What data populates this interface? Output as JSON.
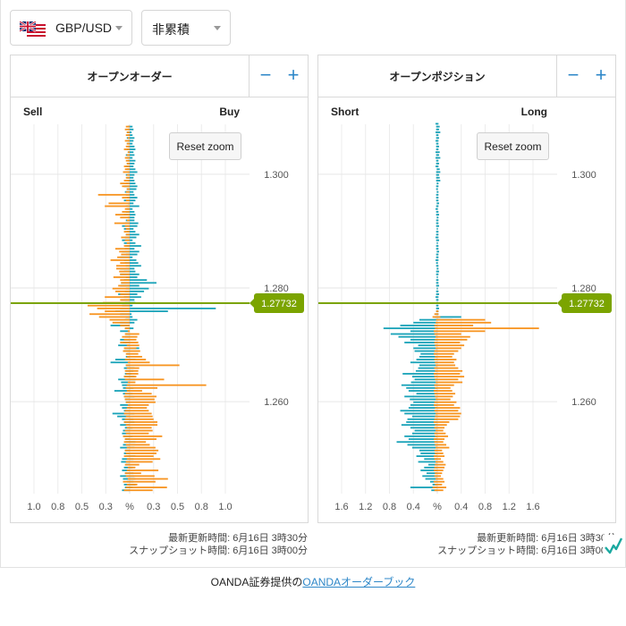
{
  "controls": {
    "pair": "GBP/USD",
    "mode": "非累積",
    "reset_label": "Reset zoom"
  },
  "colors": {
    "orange": "#f7931e",
    "teal": "#17a2b8",
    "price_line": "#7ba400",
    "zoom_blue": "#2d87c8"
  },
  "meta": {
    "left": {
      "updated": "最新更新時間: 6月16日 3時30分",
      "snapshot": "スナップショット時間: 6月16日 3時00分"
    },
    "right": {
      "updated": "最新更新時間: 6月16日 3時30分",
      "snapshot": "スナップショット時間: 6月16日 3時00分"
    }
  },
  "footer": {
    "prefix": "OANDA証券提供の",
    "link": "OANDAオーダーブック"
  },
  "chart_data": [
    {
      "type": "bar",
      "title": "オープンオーダー",
      "left_label": "Sell",
      "right_label": "Buy",
      "xlabel": "%",
      "x_ticks_left": [
        "1.0",
        "0.8",
        "0.5",
        "0.3"
      ],
      "x_ticks_right": [
        "0.3",
        "0.5",
        "0.8",
        "1.0"
      ],
      "center_label": "%",
      "x_scale_max": 1.0,
      "y_ticks": [
        "1.300",
        "1.280",
        "1.260"
      ],
      "y_range": [
        1.2438,
        1.3088
      ],
      "current_price": "1.27732",
      "bucket": 0.0005,
      "orange_right": [
        0,
        0.24,
        0.39,
        0.08,
        0.27,
        0.4,
        0.26,
        0.12,
        0.3,
        0.06,
        0.1,
        0.24,
        0.32,
        0.25,
        0.28,
        0.3,
        0.27,
        0.21,
        0.17,
        0.28,
        0.34,
        0.2,
        0.24,
        0.23,
        0.29,
        0.29,
        0.25,
        0.24,
        0.23,
        0.2,
        0.18,
        0.2,
        0.27,
        0.26,
        0.28,
        0.23,
        0.13,
        0.29,
        0.8,
        0.06,
        0.36,
        0.07,
        0.09,
        0.09,
        0.1,
        0.52,
        0.21,
        0.17,
        0.13,
        0.09,
        0.11,
        0.07,
        0.1,
        0.09,
        0.07,
        0.08,
        0.1,
        0,
        0,
        0,
        0,
        0,
        0,
        0,
        0,
        0,
        0,
        0,
        0,
        0,
        0,
        0,
        0,
        0,
        0,
        0,
        0,
        0,
        0,
        0,
        0,
        0,
        0,
        0,
        0,
        0,
        0,
        0,
        0,
        0,
        0,
        0,
        0,
        0,
        0,
        0,
        0,
        0,
        0,
        0,
        0,
        0,
        0,
        0,
        0,
        0,
        0,
        0,
        0,
        0,
        0,
        0,
        0,
        0,
        0,
        0,
        0,
        0,
        0,
        0,
        0,
        0,
        0,
        0,
        0,
        0,
        0,
        0,
        0,
        0,
        0,
        0,
        0,
        0,
        0
      ],
      "teal_right": [
        0,
        0,
        0.03,
        0.06,
        0.04,
        0.06,
        0.05,
        0.04,
        0,
        0.03,
        0,
        0,
        0.04,
        0.06,
        0,
        0,
        0.05,
        0,
        0.06,
        0,
        0.03,
        0,
        0,
        0.03,
        0,
        0.05,
        0.04,
        0,
        0.05,
        0,
        0.03,
        0,
        0,
        0,
        0.05,
        0.03,
        0,
        0.04,
        0,
        0,
        0.06,
        0.05,
        0.02,
        0.04,
        0.05,
        0,
        0,
        0.06,
        0,
        0,
        0,
        0.1,
        0,
        0,
        0,
        0,
        0,
        0,
        0.04,
        0,
        0.05,
        0.08,
        0.03,
        0.02,
        0.4,
        0.9,
        0.03,
        0.06,
        0.05,
        0.12,
        0.08,
        0.15,
        0.2,
        0.1,
        0.28,
        0.18,
        0.08,
        0.1,
        0.06,
        0.05,
        0.12,
        0.09,
        0.07,
        0.03,
        0.08,
        0.1,
        0.05,
        0.12,
        0.06,
        0.03,
        0.07,
        0.1,
        0.06,
        0.04,
        0.08,
        0.09,
        0.05,
        0.05,
        0.06,
        0.05,
        0.03,
        0.1,
        0.04,
        0.06,
        0.08,
        0.05,
        0.04,
        0.07,
        0.08,
        0.06,
        0.05,
        0.04,
        0.05,
        0.08,
        0.06,
        0.04,
        0.05,
        0.06,
        0.03,
        0.05,
        0.04,
        0.06,
        0.05,
        0.03,
        0.04,
        0.05,
        0.03,
        0.02,
        0.04,
        0.03
      ],
      "orange_left": [
        0,
        0.06,
        0.04,
        0.03,
        0.07,
        0.02,
        0.04,
        0.05,
        0.03,
        0.02,
        0.05,
        0.04,
        0.03,
        0.06,
        0.04,
        0.05,
        0.03,
        0.04,
        0.06,
        0.05,
        0.07,
        0.04,
        0.05,
        0.03,
        0.04,
        0.06,
        0.05,
        0.04,
        0.06,
        0.05,
        0.03,
        0.02,
        0.04,
        0.05,
        0.06,
        0.05,
        0.03,
        0.04,
        0.03,
        0.02,
        0.05,
        0.06,
        0.04,
        0.05,
        0.03,
        0.04,
        0.02,
        0.05,
        0.03,
        0.04,
        0.07,
        0.06,
        0.03,
        0.1,
        0.06,
        0.08,
        0.05,
        0.02,
        0.05,
        0.1,
        0.18,
        0.21,
        0.32,
        0.42,
        0.26,
        0.34,
        0.44,
        0.28,
        0.1,
        0.26,
        0.1,
        0.15,
        0.18,
        0.12,
        0.09,
        0.1,
        0.17,
        0.1,
        0.11,
        0.14,
        0.14,
        0.1,
        0.2,
        0.13,
        0.09,
        0.11,
        0.15,
        0.06,
        0.03,
        0.05,
        0.09,
        0.04,
        0.06,
        0.04,
        0.05,
        0.16,
        0.03,
        0.1,
        0.15,
        0.08,
        0.05,
        0.26,
        0.22,
        0.04,
        0.08,
        0.33,
        0.04,
        0.03,
        0.08,
        0.1,
        0.06,
        0.04,
        0.03,
        0.07,
        0.05,
        0.06,
        0.03,
        0.04,
        0.05,
        0.03,
        0.02,
        0.06,
        0.04,
        0.03,
        0.05,
        0.02,
        0.04,
        0.03,
        0.05,
        0.04
      ],
      "teal_left": [
        0,
        0.08,
        0.05,
        0.06,
        0.03,
        0.07,
        0.1,
        0.05,
        0.08,
        0.06,
        0.04,
        0.09,
        0.08,
        0.04,
        0.06,
        0.05,
        0.1,
        0.07,
        0.04,
        0.05,
        0.06,
        0.08,
        0.07,
        0.05,
        0.1,
        0.06,
        0.08,
        0.13,
        0.18,
        0.06,
        0.08,
        0.1,
        0.04,
        0.05,
        0.06,
        0.07,
        0.16,
        0.07,
        0.08,
        0.09,
        0.12,
        0.06,
        0.05,
        0.04,
        0.06,
        0.04,
        0.2,
        0.15,
        0.04,
        0.03,
        0.06,
        0.05,
        0.12,
        0.07,
        0.1,
        0.05,
        0.04,
        0.1,
        0.05,
        0.2,
        0.1,
        0.05,
        0.04,
        0.1,
        0.15,
        0.1,
        0.08,
        0.05,
        0.09,
        0.06,
        0.12,
        0.05,
        0.04,
        0.1,
        0.09,
        0.06,
        0.04,
        0.1,
        0.06,
        0.1,
        0.04,
        0.05,
        0.06,
        0.1,
        0.04,
        0.08,
        0.05,
        0.04,
        0.06,
        0.08,
        0.05,
        0.04,
        0.03,
        0.06,
        0.08,
        0.05,
        0.04,
        0.02,
        0.06,
        0.04,
        0.03,
        0.04,
        0.02,
        0.06,
        0.03,
        0.04,
        0.05,
        0.03,
        0.06,
        0.04,
        0.02,
        0.03,
        0.04,
        0.02,
        0.03,
        0.04,
        0.03,
        0.02,
        0.03,
        0.04,
        0.02,
        0.03,
        0.02,
        0.03,
        0.02,
        0.03,
        0.02,
        0.03,
        0.02,
        0.02
      ]
    },
    {
      "type": "bar",
      "title": "オープンポジション",
      "left_label": "Short",
      "right_label": "Long",
      "xlabel": "%",
      "x_ticks_left": [
        "1.6",
        "1.2",
        "0.8",
        "0.4"
      ],
      "x_ticks_right": [
        "0.4",
        "0.8",
        "1.2",
        "1.6"
      ],
      "center_label": "%",
      "x_scale_max": 1.6,
      "y_ticks": [
        "1.300",
        "1.280",
        "1.260"
      ],
      "y_range": [
        1.2438,
        1.3088
      ],
      "current_price": "1.27732",
      "bucket": 0.0005,
      "orange_right": [
        0,
        0.1,
        0.15,
        0.08,
        0.12,
        0.1,
        0.06,
        0.08,
        0.1,
        0.12,
        0.14,
        0.1,
        0.06,
        0.12,
        0.1,
        0.08,
        0.2,
        0.15,
        0.1,
        0.12,
        0.18,
        0.14,
        0.1,
        0.12,
        0.16,
        0.2,
        0.35,
        0.38,
        0.4,
        0.35,
        0.38,
        0.28,
        0.32,
        0.22,
        0.26,
        0.3,
        0.25,
        0.22,
        0.28,
        0.42,
        0.35,
        0.45,
        0.38,
        0.42,
        0.35,
        0.3,
        0.28,
        0.32,
        0.25,
        0.28,
        0.35,
        0.4,
        0.45,
        0.38,
        0.5,
        0.55,
        0.4,
        0.8,
        1.7,
        0.6,
        0.9,
        0.8,
        0.05,
        0.02,
        0.02,
        0,
        0,
        0,
        0,
        0,
        0,
        0,
        0,
        0,
        0,
        0,
        0,
        0,
        0,
        0,
        0,
        0,
        0,
        0,
        0,
        0,
        0,
        0,
        0,
        0,
        0,
        0,
        0,
        0,
        0,
        0,
        0,
        0,
        0,
        0,
        0,
        0,
        0,
        0,
        0,
        0,
        0,
        0,
        0,
        0,
        0,
        0,
        0,
        0,
        0,
        0,
        0,
        0,
        0,
        0,
        0,
        0,
        0,
        0,
        0,
        0,
        0,
        0,
        0,
        0,
        0
      ],
      "teal_right": [
        0,
        0,
        0,
        0,
        0,
        0,
        0,
        0,
        0,
        0,
        0,
        0,
        0,
        0,
        0,
        0,
        0,
        0,
        0,
        0,
        0,
        0,
        0,
        0,
        0,
        0,
        0,
        0,
        0,
        0,
        0,
        0,
        0,
        0,
        0,
        0,
        0,
        0,
        0,
        0,
        0,
        0,
        0,
        0,
        0,
        0,
        0,
        0,
        0,
        0,
        0,
        0,
        0,
        0,
        0,
        0,
        0,
        0,
        0,
        0,
        0,
        0.25,
        0.4,
        0.02,
        0.02,
        0.03,
        0.02,
        0.01,
        0.02,
        0.02,
        0.03,
        0.02,
        0.01,
        0.03,
        0.02,
        0.02,
        0.01,
        0.02,
        0.03,
        0.02,
        0.02,
        0.01,
        0.02,
        0.02,
        0.02,
        0.03,
        0.02,
        0.02,
        0.01,
        0.03,
        0.02,
        0.02,
        0.02,
        0.01,
        0.03,
        0.02,
        0.02,
        0.02,
        0.03,
        0.02,
        0.01,
        0.02,
        0.03,
        0.02,
        0.02,
        0.02,
        0.02,
        0.01,
        0.02,
        0.02,
        0.05,
        0.04,
        0.03,
        0.05,
        0.04,
        0.02,
        0.03,
        0.02,
        0.05,
        0.03,
        0.04,
        0.02,
        0.03,
        0.02,
        0.02,
        0.03,
        0.02,
        0.05,
        0.03,
        0.04,
        0.02
      ],
      "orange_left": [
        0,
        0.05,
        0.08,
        0.04,
        0.06,
        0.03,
        0.05,
        0.04,
        0.06,
        0.05,
        0.04,
        0.03,
        0.05,
        0.06,
        0.04,
        0.05,
        0.03,
        0.04,
        0.05,
        0.06,
        0.04,
        0.05,
        0.03,
        0.05,
        0.04,
        0.06,
        0.05,
        0.04,
        0.03,
        0.05,
        0.04,
        0.06,
        0.05,
        0.03,
        0.04,
        0.05,
        0.06,
        0.04,
        0.05,
        0.03,
        0.04,
        0.05,
        0.06,
        0.04,
        0.05,
        0.03,
        0.04,
        0.05,
        0.04,
        0.06,
        0.05,
        0.03,
        0.04,
        0.05,
        0.04,
        0.03,
        0.05,
        0.06,
        0.04,
        0.05,
        0.03,
        0.02,
        0.08,
        0.05,
        0.02,
        0,
        0,
        0,
        0,
        0,
        0,
        0,
        0,
        0,
        0,
        0,
        0,
        0,
        0,
        0,
        0,
        0,
        0,
        0,
        0,
        0,
        0,
        0,
        0,
        0,
        0,
        0,
        0,
        0,
        0,
        0,
        0,
        0,
        0,
        0,
        0,
        0,
        0,
        0,
        0,
        0,
        0,
        0,
        0,
        0,
        0,
        0,
        0,
        0,
        0,
        0,
        0,
        0,
        0,
        0,
        0,
        0,
        0,
        0,
        0,
        0,
        0,
        0,
        0,
        0,
        0
      ],
      "teal_left": [
        0,
        0.1,
        0.45,
        0.08,
        0.12,
        0.2,
        0.25,
        0.18,
        0.28,
        0.22,
        0.15,
        0.32,
        0.22,
        0.35,
        0.28,
        0.3,
        0.42,
        0.5,
        0.68,
        0.48,
        0.55,
        0.42,
        0.38,
        0.45,
        0.6,
        0.52,
        0.5,
        0.42,
        0.55,
        0.62,
        0.48,
        0.45,
        0.4,
        0.46,
        0.55,
        0.35,
        0.48,
        0.52,
        0.6,
        0.44,
        0.38,
        0.42,
        0.58,
        0.36,
        0.32,
        0.3,
        0.45,
        0.35,
        0.3,
        0.28,
        0.38,
        0.4,
        0.32,
        0.55,
        0.45,
        0.65,
        0.78,
        0.45,
        0.9,
        0.62,
        0.4,
        0.3,
        0.05,
        0.03,
        0.02,
        0.02,
        0.02,
        0.01,
        0.02,
        0.03,
        0.02,
        0.02,
        0.01,
        0.02,
        0.02,
        0.02,
        0.01,
        0.02,
        0.02,
        0.01,
        0.02,
        0.02,
        0.03,
        0.02,
        0.02,
        0.01,
        0.02,
        0.02,
        0.01,
        0.02,
        0.03,
        0.02,
        0.02,
        0.01,
        0.02,
        0.02,
        0.02,
        0.01,
        0.02,
        0.02,
        0.03,
        0.02,
        0.01,
        0.02,
        0.02,
        0.02,
        0.01,
        0.02,
        0.02,
        0.01,
        0.02,
        0.02,
        0.02,
        0.02,
        0.01,
        0.03,
        0.02,
        0.02,
        0.03,
        0.02,
        0.03,
        0.02,
        0.02,
        0.02,
        0.03,
        0.02,
        0.02,
        0.03,
        0.02,
        0.02,
        0.03
      ]
    }
  ]
}
